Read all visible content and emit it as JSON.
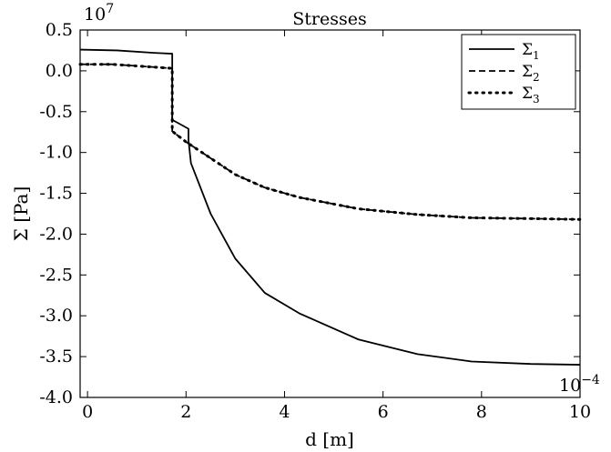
{
  "chart_data": {
    "type": "line",
    "title": "Stresses",
    "xlabel": "d [m]",
    "ylabel": "Σ [Pa]",
    "x_multiplier_label": "10",
    "x_multiplier_exp": "−4",
    "y_multiplier_label": "10",
    "y_multiplier_exp": "7",
    "xlim": [
      -0.15,
      10
    ],
    "ylim": [
      -4.0,
      0.5
    ],
    "x_ticks": [
      0,
      2,
      4,
      6,
      8,
      10
    ],
    "x_tick_labels": [
      "0",
      "2",
      "4",
      "6",
      "8",
      "10"
    ],
    "y_ticks": [
      0.5,
      0.0,
      -0.5,
      -1.0,
      -1.5,
      -2.0,
      -2.5,
      -3.0,
      -3.5,
      -4.0
    ],
    "y_tick_labels": [
      "0.5",
      "0.0",
      "-0.5",
      "-1.0",
      "-1.5",
      "-2.0",
      "-2.5",
      "-3.0",
      "-3.5",
      "-4.0"
    ],
    "grid": false,
    "legend_position": "top-right",
    "series": [
      {
        "name": "Σ1",
        "legend_base": "Σ",
        "legend_sub": "1",
        "style": "solid",
        "x": [
          -0.15,
          0.6,
          1.35,
          1.72,
          1.72,
          2.05,
          2.05,
          2.1,
          2.5,
          3.0,
          3.6,
          4.3,
          5.5,
          6.7,
          7.8,
          9.0,
          10.0
        ],
        "y": [
          0.26,
          0.25,
          0.22,
          0.21,
          -0.6,
          -0.71,
          -0.85,
          -1.13,
          -1.75,
          -2.3,
          -2.72,
          -2.97,
          -3.29,
          -3.47,
          -3.56,
          -3.59,
          -3.6
        ]
      },
      {
        "name": "Σ2",
        "legend_base": "Σ",
        "legend_sub": "2",
        "style": "dashed",
        "x": [
          -0.15,
          0.5,
          1.0,
          1.5,
          1.72,
          1.72,
          2.0,
          2.5,
          3.0,
          3.6,
          4.3,
          5.5,
          6.7,
          7.8,
          9.0,
          10.0
        ],
        "y": [
          0.08,
          0.08,
          0.06,
          0.04,
          0.03,
          -0.74,
          -0.87,
          -1.07,
          -1.27,
          -1.43,
          -1.55,
          -1.69,
          -1.76,
          -1.8,
          -1.81,
          -1.82
        ]
      },
      {
        "name": "Σ3",
        "legend_base": "Σ",
        "legend_sub": "3",
        "style": "dotted",
        "x": [
          -0.15,
          0.5,
          1.0,
          1.5,
          1.72,
          1.72,
          2.0,
          2.5,
          3.0,
          3.6,
          4.3,
          5.5,
          6.7,
          7.8,
          9.0,
          10.0
        ],
        "y": [
          0.08,
          0.08,
          0.06,
          0.04,
          0.03,
          -0.74,
          -0.87,
          -1.07,
          -1.27,
          -1.43,
          -1.55,
          -1.69,
          -1.76,
          -1.8,
          -1.81,
          -1.82
        ]
      }
    ]
  }
}
